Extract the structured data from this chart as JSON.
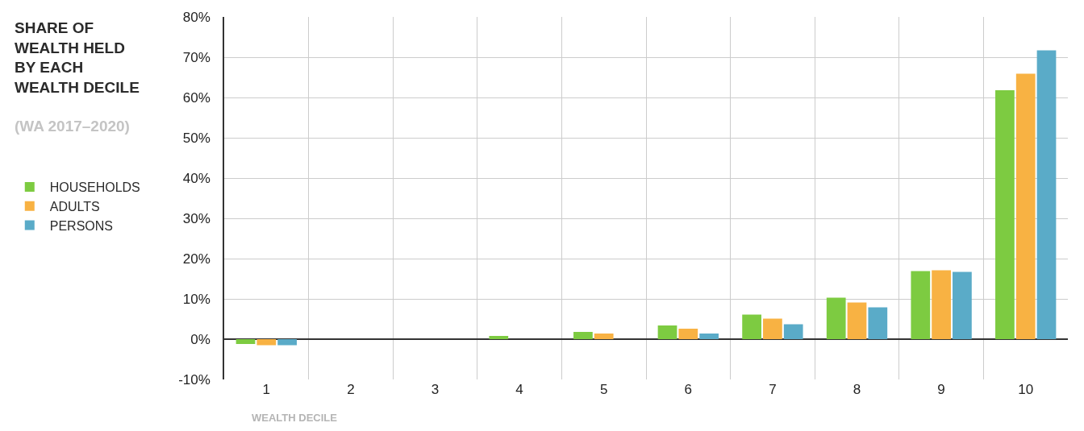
{
  "chart_data": {
    "type": "bar",
    "title": "SHARE OF\nWEALTH HELD\nBY EACH\nWEALTH DECILE",
    "subtitle": "(WA 2017–2020)",
    "xlabel": "WEALTH DECILE",
    "categories": [
      "1",
      "2",
      "3",
      "4",
      "5",
      "6",
      "7",
      "8",
      "9",
      "10"
    ],
    "series": [
      {
        "name": "HOUSEHOLDS",
        "color": "#7dcb41",
        "values": [
          -1.2,
          0,
          0,
          0.8,
          1.8,
          3.4,
          6.1,
          10.3,
          16.9,
          61.8
        ]
      },
      {
        "name": "ADULTS",
        "color": "#f8b243",
        "values": [
          -1.5,
          0,
          0,
          0,
          1.4,
          2.6,
          5.1,
          9.1,
          17.1,
          65.9
        ]
      },
      {
        "name": "PERSONS",
        "color": "#5aabc8",
        "values": [
          -1.5,
          0,
          0,
          0,
          0,
          1.4,
          3.7,
          7.9,
          16.7,
          71.7
        ]
      }
    ],
    "ylim": [
      -10,
      80
    ],
    "yticks": [
      {
        "value": -10,
        "label": "-10%"
      },
      {
        "value": 0,
        "label": "0%"
      },
      {
        "value": 10,
        "label": "10%"
      },
      {
        "value": 20,
        "label": "20%"
      },
      {
        "value": 30,
        "label": "30%"
      },
      {
        "value": 40,
        "label": "40%"
      },
      {
        "value": 50,
        "label": "50%"
      },
      {
        "value": 60,
        "label": "60%"
      },
      {
        "value": 70,
        "label": "70%"
      },
      {
        "value": 80,
        "label": "80%"
      }
    ],
    "grid": true,
    "legend": "left"
  }
}
